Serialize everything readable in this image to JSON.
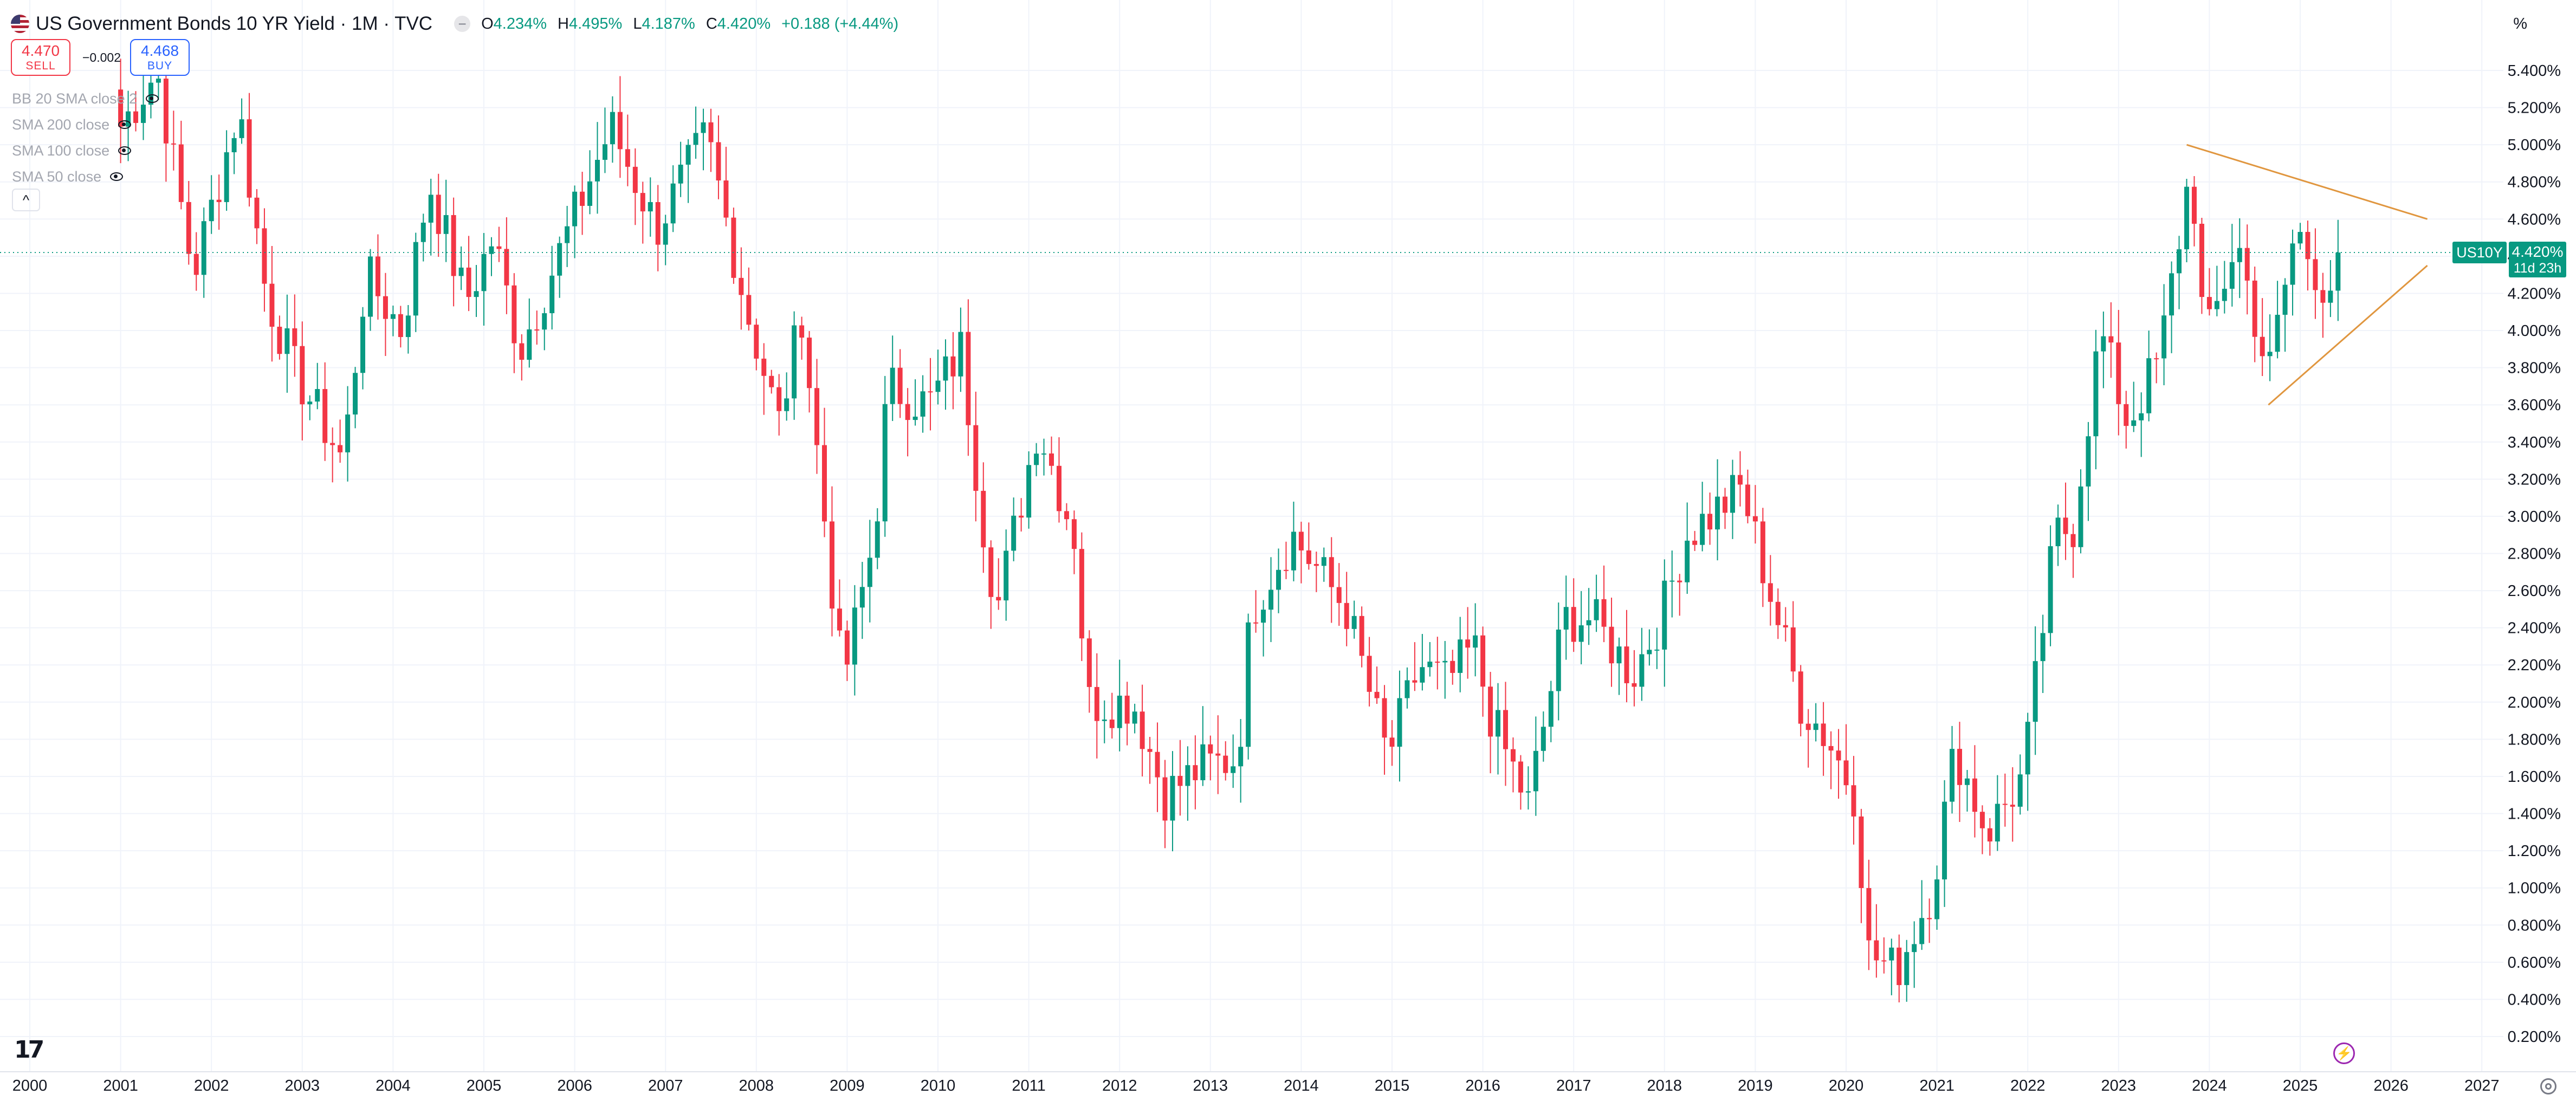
{
  "header": {
    "title": "US Government Bonds 10 YR Yield · 1M · TVC",
    "ohlc": {
      "o_label": "O",
      "o": "4.234%",
      "h_label": "H",
      "h": "4.495%",
      "l_label": "L",
      "l": "4.187%",
      "c_label": "C",
      "c": "4.420%",
      "change": "+0.188 (+4.44%)"
    },
    "more_icon": "dots-icon",
    "flag_icon": "us-flag-icon"
  },
  "trade": {
    "sell_price": "4.470",
    "sell_label": "SELL",
    "buy_price": "4.468",
    "buy_label": "BUY",
    "spread": "−0.002"
  },
  "indicators": [
    "BB 20 SMA close 2",
    "SMA 200 close",
    "SMA 100 close",
    "SMA 50 close"
  ],
  "axis": {
    "unit": "%"
  },
  "last_price": {
    "symbol": "US10Y",
    "price": "4.420%",
    "countdown": "11d 23h"
  },
  "colors": {
    "up": "#089981",
    "down": "#f23645",
    "trendline": "#e0963f",
    "price_line": "#089981"
  },
  "chart_data": {
    "type": "candlestick",
    "y_axis_position": "right",
    "grid": true,
    "y_ticks": [
      "0.200%",
      "0.400%",
      "0.600%",
      "0.800%",
      "1.000%",
      "1.200%",
      "1.400%",
      "1.600%",
      "1.800%",
      "2.000%",
      "2.200%",
      "2.400%",
      "2.600%",
      "2.800%",
      "3.000%",
      "3.200%",
      "3.400%",
      "3.600%",
      "3.800%",
      "4.000%",
      "4.200%",
      "4.400%",
      "4.600%",
      "4.800%",
      "5.000%",
      "5.200%",
      "5.400%"
    ],
    "x_ticks": [
      "2000",
      "2001",
      "2002",
      "2003",
      "2004",
      "2005",
      "2006",
      "2007",
      "2008",
      "2009",
      "2010",
      "2011",
      "2012",
      "2013",
      "2014",
      "2015",
      "2016",
      "2017",
      "2018",
      "2019",
      "2020",
      "2021",
      "2022",
      "2023",
      "2024",
      "2025",
      "2026",
      "2027"
    ],
    "ylim": [
      0.1,
      5.6
    ],
    "xlim": [
      2000.0,
      2028.0
    ],
    "close_path": [
      [
        2001.0,
        5.1
      ],
      [
        2001.4,
        5.4
      ],
      [
        2001.8,
        4.3
      ],
      [
        2002.3,
        5.2
      ],
      [
        2002.6,
        4.2
      ],
      [
        2002.9,
        3.8
      ],
      [
        2003.45,
        3.3
      ],
      [
        2003.7,
        4.3
      ],
      [
        2004.1,
        4.0
      ],
      [
        2004.4,
        4.8
      ],
      [
        2004.8,
        4.15
      ],
      [
        2005.1,
        4.5
      ],
      [
        2005.4,
        3.9
      ],
      [
        2005.9,
        4.5
      ],
      [
        2006.4,
        5.1
      ],
      [
        2006.9,
        4.55
      ],
      [
        2007.45,
        5.05
      ],
      [
        2007.9,
        4.1
      ],
      [
        2008.25,
        3.5
      ],
      [
        2008.5,
        4.1
      ],
      [
        2008.95,
        2.1
      ],
      [
        2009.3,
        2.9
      ],
      [
        2009.45,
        3.7
      ],
      [
        2009.9,
        3.6
      ],
      [
        2010.25,
        3.9
      ],
      [
        2010.5,
        2.95
      ],
      [
        2010.65,
        2.5
      ],
      [
        2011.1,
        3.5
      ],
      [
        2011.5,
        2.9
      ],
      [
        2011.65,
        2.0
      ],
      [
        2012.15,
        2.0
      ],
      [
        2012.5,
        1.5
      ],
      [
        2012.9,
        1.65
      ],
      [
        2013.3,
        1.7
      ],
      [
        2013.45,
        2.5
      ],
      [
        2013.9,
        2.9
      ],
      [
        2014.5,
        2.5
      ],
      [
        2014.95,
        1.7
      ],
      [
        2015.3,
        2.2
      ],
      [
        2015.6,
        2.1
      ],
      [
        2015.9,
        2.3
      ],
      [
        2016.1,
        1.9
      ],
      [
        2016.5,
        1.45
      ],
      [
        2016.9,
        2.45
      ],
      [
        2017.2,
        2.45
      ],
      [
        2017.65,
        2.15
      ],
      [
        2017.95,
        2.45
      ],
      [
        2018.25,
        2.9
      ],
      [
        2018.85,
        3.15
      ],
      [
        2019.1,
        2.7
      ],
      [
        2019.5,
        2.0
      ],
      [
        2019.8,
        1.8
      ],
      [
        2020.1,
        1.5
      ],
      [
        2020.25,
        0.65
      ],
      [
        2020.55,
        0.55
      ],
      [
        2020.95,
        1.0
      ],
      [
        2021.2,
        1.75
      ],
      [
        2021.55,
        1.3
      ],
      [
        2021.95,
        1.6
      ],
      [
        2022.3,
        2.9
      ],
      [
        2022.5,
        2.95
      ],
      [
        2022.8,
        4.0
      ],
      [
        2023.1,
        3.5
      ],
      [
        2023.45,
        3.85
      ],
      [
        2023.8,
        4.9
      ],
      [
        2023.95,
        3.9
      ],
      [
        2024.3,
        4.5
      ],
      [
        2024.65,
        3.75
      ],
      [
        2024.95,
        4.55
      ],
      [
        2025.3,
        4.2
      ],
      [
        2025.45,
        4.42
      ]
    ],
    "trendlines": [
      {
        "from": [
          2023.75,
          5.0
        ],
        "to": [
          2026.4,
          4.6
        ]
      },
      {
        "from": [
          2024.65,
          3.6
        ],
        "to": [
          2026.4,
          4.35
        ]
      }
    ],
    "last_close": 4.42
  }
}
